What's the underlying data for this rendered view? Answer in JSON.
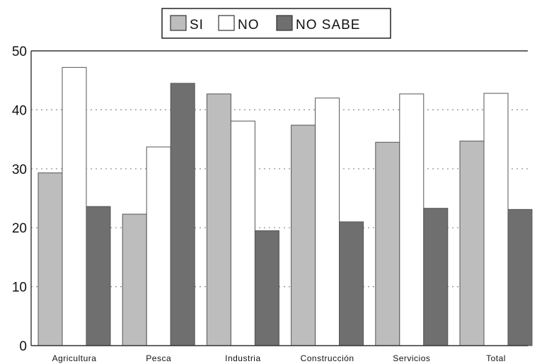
{
  "chart_data": {
    "type": "bar",
    "categories": [
      "Agricultura",
      "Pesca",
      "Industria",
      "Construcción",
      "Servicios",
      "Total"
    ],
    "series": [
      {
        "name": "SI",
        "values": [
          29.3,
          22.3,
          42.7,
          37.4,
          34.5,
          34.7
        ]
      },
      {
        "name": "NO",
        "values": [
          47.2,
          33.7,
          38.1,
          42.0,
          42.7,
          42.8
        ]
      },
      {
        "name": "NO SABE",
        "values": [
          23.6,
          44.5,
          19.5,
          21.0,
          23.3,
          23.1
        ]
      }
    ],
    "colors": {
      "SI": "#bdbdbd",
      "NO": "#ffffff",
      "NO SABE": "#6f6f6f"
    },
    "ylim": [
      0,
      50
    ],
    "yticks": [
      0,
      10,
      20,
      30,
      40,
      50
    ],
    "grid": true,
    "legend_position": "top-center"
  }
}
